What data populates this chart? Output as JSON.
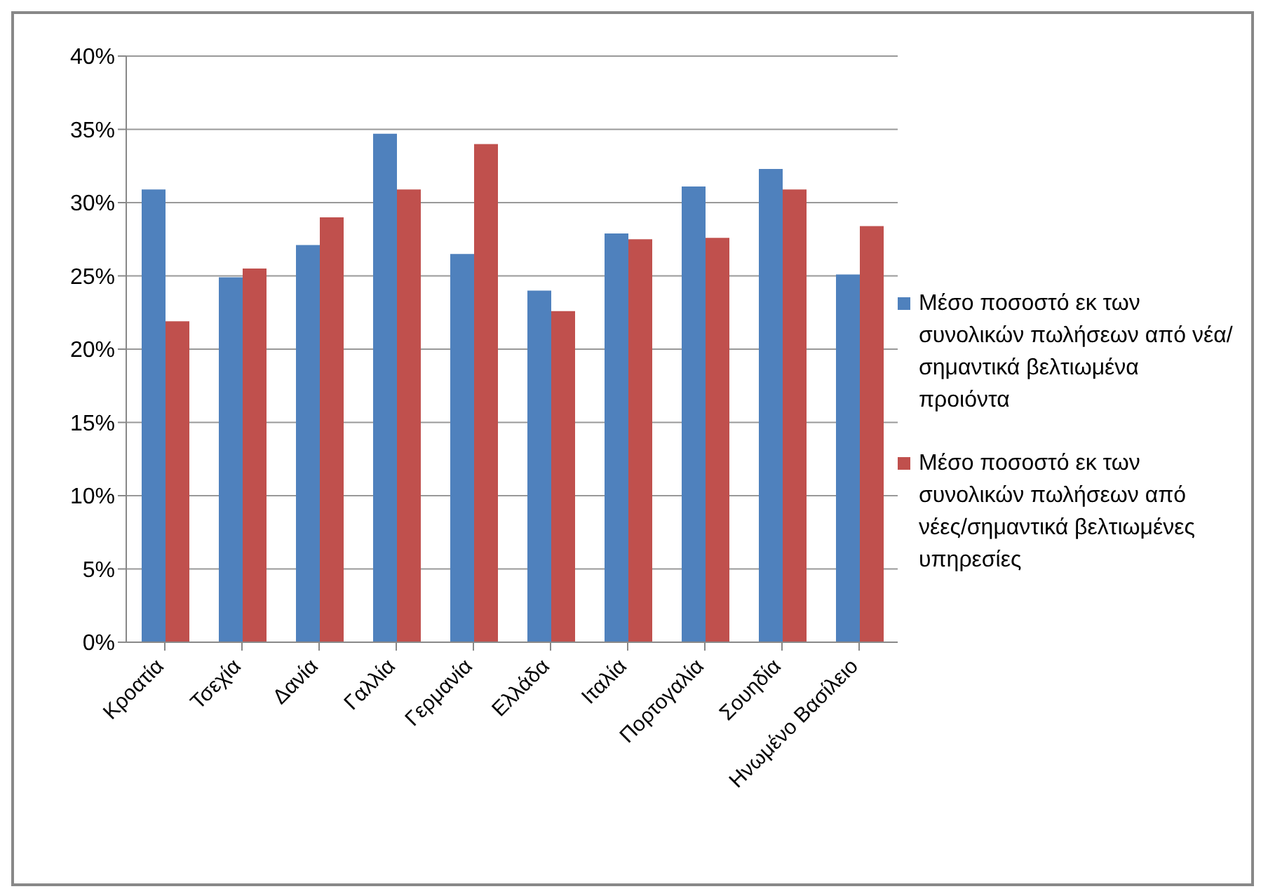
{
  "chart_data": {
    "type": "bar",
    "categories": [
      "Κροατία",
      "Τσεχία",
      "Δανία",
      "Γαλλία",
      "Γερμανία",
      "Ελλάδα",
      "Ιταλία",
      "Πορτογαλία",
      "Σουηδία",
      "Ηνωμένο Βασίλειο"
    ],
    "series": [
      {
        "name": "Μέσο ποσοστό εκ των συνολικών πωλήσεων από νέα/σημαντικά βελτιωμένα προιόντα",
        "color": "#4f81bd",
        "values": [
          30.9,
          24.9,
          27.1,
          34.7,
          26.5,
          24.0,
          27.9,
          31.1,
          32.3,
          25.1
        ]
      },
      {
        "name": "Μέσο ποσοστό εκ των συνολικών πωλήσεων από νέες/σημαντικά βελτιωμένες υπηρεσίες",
        "color": "#c0504d",
        "values": [
          21.9,
          25.5,
          29.0,
          30.9,
          34.0,
          22.6,
          27.5,
          27.6,
          30.9,
          28.4
        ]
      }
    ],
    "ylim": [
      0,
      40
    ],
    "yticks": [
      {
        "value": 0,
        "label": "0%"
      },
      {
        "value": 5,
        "label": "5%"
      },
      {
        "value": 10,
        "label": "10%"
      },
      {
        "value": 15,
        "label": "15%"
      },
      {
        "value": 20,
        "label": "20%"
      },
      {
        "value": 25,
        "label": "25%"
      },
      {
        "value": 30,
        "label": "30%"
      },
      {
        "value": 35,
        "label": "35%"
      },
      {
        "value": 40,
        "label": "40%"
      }
    ],
    "grid": "y",
    "legend": "right"
  }
}
